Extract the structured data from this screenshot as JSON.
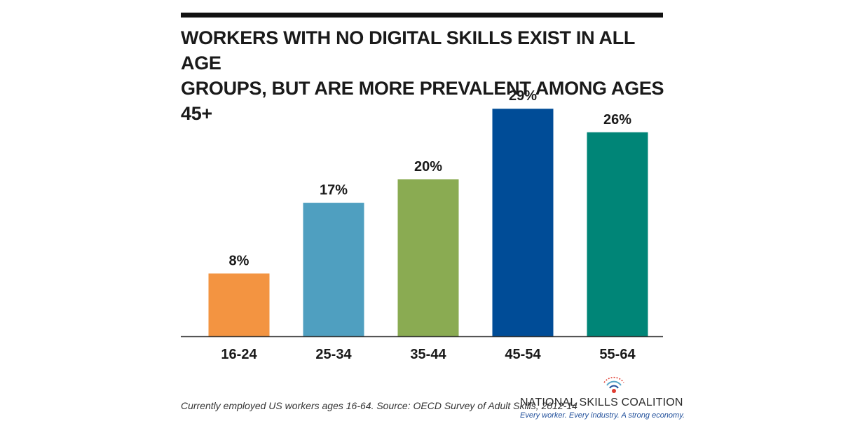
{
  "chart_data": {
    "type": "bar",
    "title_lines": [
      "WORKERS WITH NO DIGITAL SKILLS EXIST IN ALL AGE",
      "GROUPS, BUT ARE MORE PREVALENT AMONG AGES 45+"
    ],
    "categories": [
      "16-24",
      "25-34",
      "35-44",
      "45-54",
      "55-64"
    ],
    "values": [
      8,
      17,
      20,
      29,
      26
    ],
    "value_labels": [
      "8%",
      "17%",
      "20%",
      "29%",
      "26%"
    ],
    "colors": [
      "#f39441",
      "#4f9fc0",
      "#8aab52",
      "#004c97",
      "#008577"
    ],
    "xlabel": "",
    "ylabel": "",
    "ylim": [
      0,
      100
    ],
    "grid": false,
    "legend": "none"
  },
  "footnote": "Currently employed US workers ages 16-64. Source: OECD Survey of Adult Skills, 2012-14",
  "logo": {
    "name": "NATIONAL SKILLS COALITION",
    "tagline": "Every worker. Every industry. A strong economy.",
    "icon": "signal-waves-icon",
    "colors": [
      "#e03c31",
      "#1f4e9a",
      "#5aa7c9"
    ]
  }
}
